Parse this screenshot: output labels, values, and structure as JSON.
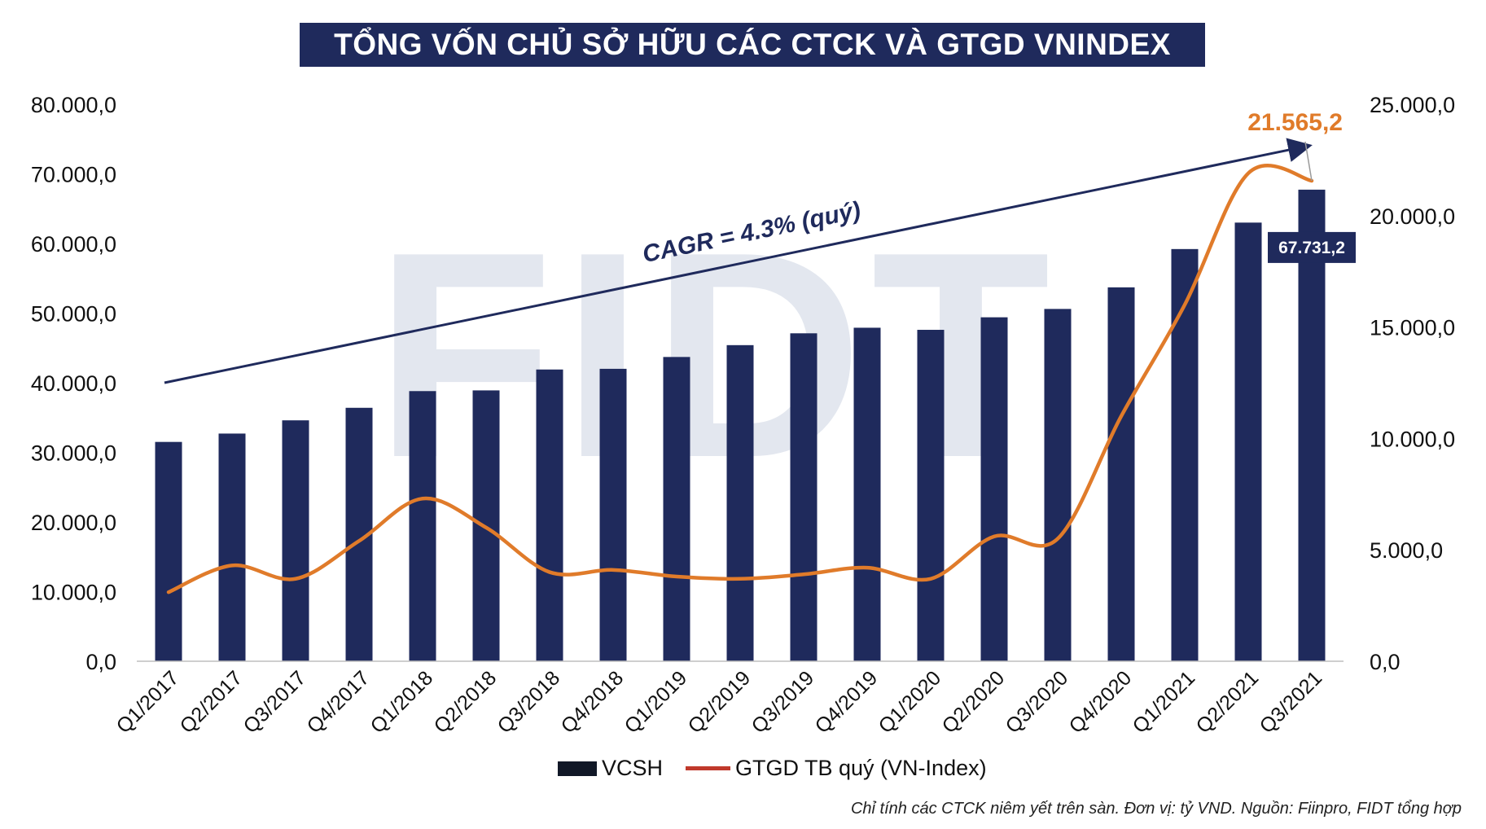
{
  "title": "TỔNG VỐN CHỦ SỞ HỮU CÁC CTCK VÀ GTGD VNINDEX",
  "footnote": "Chỉ tính các CTCK niêm yết trên sàn. Đơn vị: tỷ VND. Nguồn: Fiinpro, FIDT tổng hợp",
  "watermark": "FIDT",
  "colors": {
    "bar": "#1f2a5c",
    "line": "#e07b2a",
    "title_bg": "#1f2a5c",
    "trend": "#1f2a5c",
    "accent_label": "#e07b2a"
  },
  "chart_data": {
    "type": "bar",
    "categories": [
      "Q1/2017",
      "Q2/2017",
      "Q3/2017",
      "Q4/2017",
      "Q1/2018",
      "Q2/2018",
      "Q3/2018",
      "Q4/2018",
      "Q1/2019",
      "Q2/2019",
      "Q3/2019",
      "Q4/2019",
      "Q1/2020",
      "Q2/2020",
      "Q3/2020",
      "Q4/2020",
      "Q1/2021",
      "Q2/2021",
      "Q3/2021"
    ],
    "series": [
      {
        "name": "VCSH",
        "type": "bar",
        "axis": "left",
        "values": [
          31500,
          32700,
          34600,
          36400,
          38800,
          38900,
          41900,
          42000,
          43700,
          45400,
          47100,
          47900,
          47600,
          49400,
          50600,
          53700,
          59200,
          63000,
          67731.2
        ]
      },
      {
        "name": "GTGD TB quý (VN-Index)",
        "type": "line",
        "axis": "right",
        "values": [
          3100,
          4300,
          3700,
          5400,
          7300,
          6000,
          4000,
          4100,
          3800,
          3700,
          3900,
          4200,
          3700,
          5600,
          5500,
          11000,
          16000,
          21900,
          21565.2
        ]
      }
    ],
    "y_left": {
      "min": 0,
      "max": 80000,
      "ticks": [
        "0,0",
        "10.000,0",
        "20.000,0",
        "30.000,0",
        "40.000,0",
        "50.000,0",
        "60.000,0",
        "70.000,0",
        "80.000,0"
      ]
    },
    "y_right": {
      "min": 0,
      "max": 25000,
      "ticks": [
        "0,0",
        "5.000,0",
        "10.000,0",
        "15.000,0",
        "20.000,0",
        "25.000,0"
      ]
    },
    "annotations": {
      "cagr": "CAGR = 4.3% (quý)",
      "last_bar_label": "67.731,2",
      "last_line_label": "21.565,2"
    },
    "legend": {
      "position": "bottom",
      "items": [
        "VCSH",
        "GTGD TB quý (VN-Index)"
      ]
    },
    "grid": false
  }
}
